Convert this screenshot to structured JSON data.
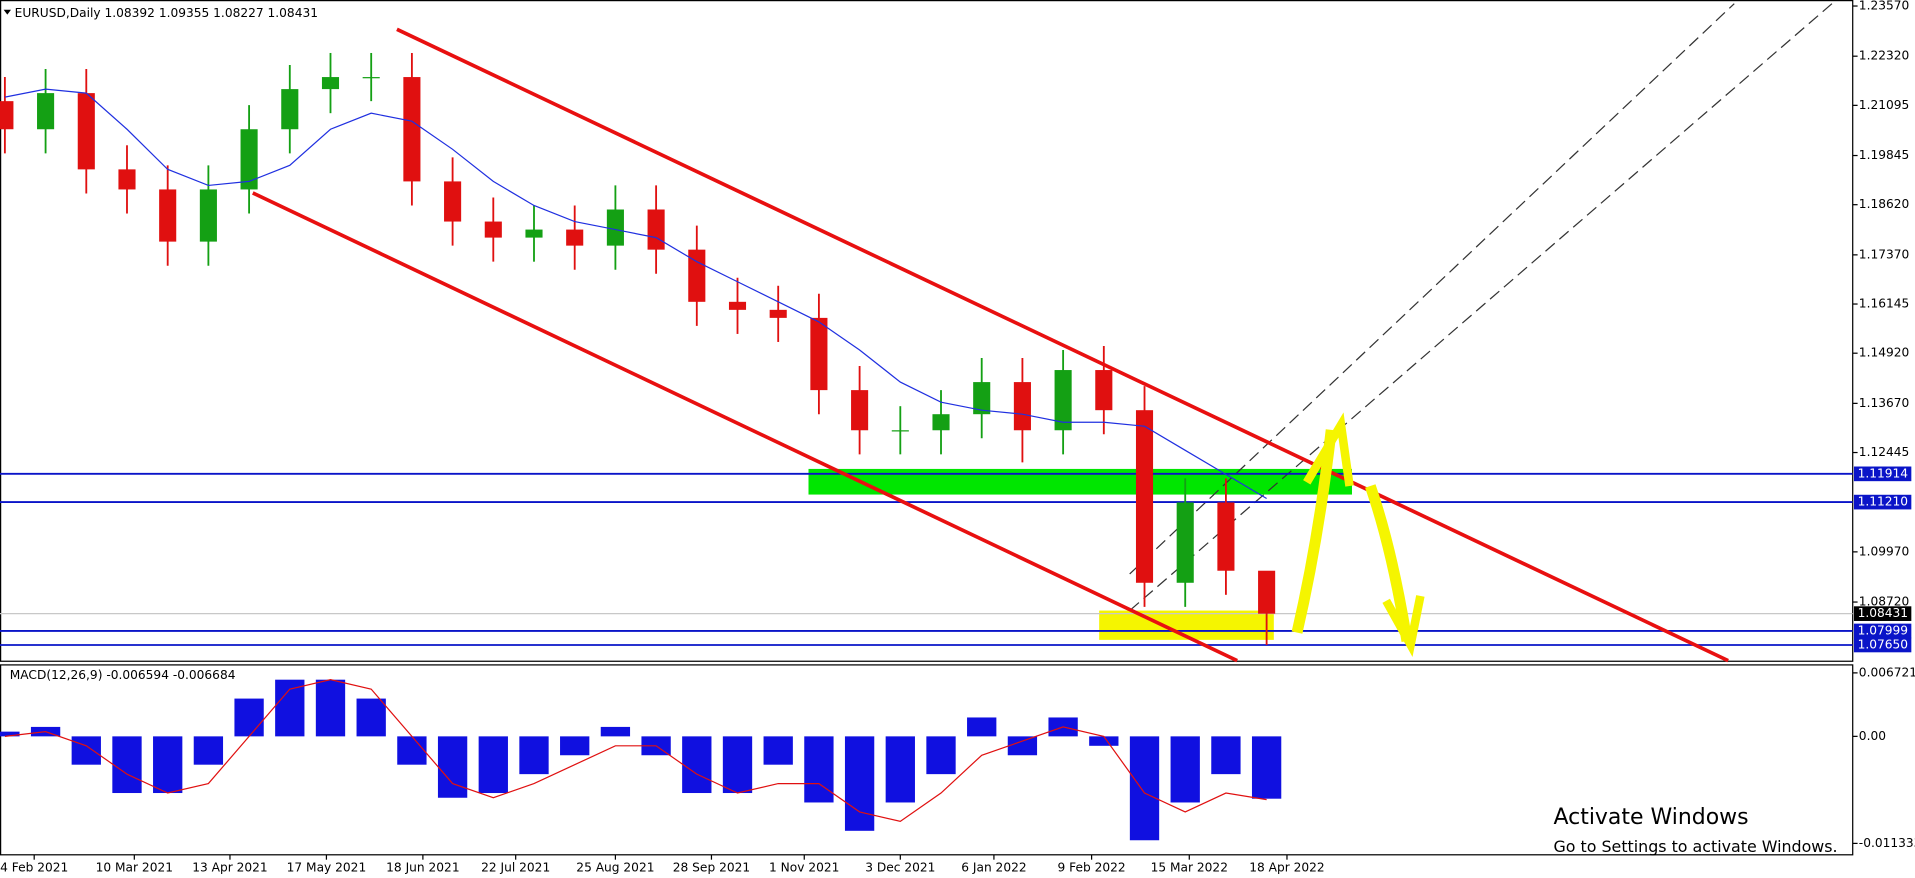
{
  "chart_data": [
    {
      "type": "candlestick",
      "title": "EURUSD,Daily 1.08392 1.09355 1.08227 1.08431",
      "up_color": "#14a014",
      "down_color": "#e01010",
      "open": [
        1.212,
        1.205,
        1.214,
        1.195,
        1.19,
        1.177,
        1.19,
        1.205,
        1.215,
        1.218,
        1.218,
        1.192,
        1.182,
        1.178,
        1.18,
        1.176,
        1.185,
        1.175,
        1.162,
        1.16,
        1.158,
        1.14,
        1.13,
        1.13,
        1.134,
        1.142,
        1.13,
        1.145,
        1.135,
        1.092,
        1.112,
        1.095
      ],
      "high": [
        1.218,
        1.22,
        1.22,
        1.201,
        1.196,
        1.196,
        1.211,
        1.221,
        1.224,
        1.224,
        1.224,
        1.198,
        1.188,
        1.186,
        1.186,
        1.191,
        1.191,
        1.181,
        1.168,
        1.166,
        1.164,
        1.146,
        1.136,
        1.14,
        1.148,
        1.148,
        1.15,
        1.151,
        1.141,
        1.118,
        1.118,
        1.0936
      ],
      "low": [
        1.199,
        1.199,
        1.189,
        1.184,
        1.171,
        1.171,
        1.184,
        1.199,
        1.209,
        1.212,
        1.186,
        1.176,
        1.172,
        1.172,
        1.17,
        1.17,
        1.169,
        1.156,
        1.154,
        1.152,
        1.134,
        1.124,
        1.124,
        1.124,
        1.128,
        1.122,
        1.124,
        1.129,
        1.086,
        1.086,
        1.089,
        1.0765
      ],
      "close": [
        1.205,
        1.214,
        1.195,
        1.19,
        1.177,
        1.19,
        1.205,
        1.215,
        1.218,
        1.218,
        1.192,
        1.182,
        1.178,
        1.18,
        1.176,
        1.185,
        1.175,
        1.162,
        1.16,
        1.158,
        1.14,
        1.13,
        1.13,
        1.134,
        1.142,
        1.13,
        1.145,
        1.135,
        1.092,
        1.112,
        1.095,
        1.0843
      ],
      "ma": {
        "color": "#2030e0",
        "values": [
          1.213,
          1.215,
          1.214,
          1.205,
          1.195,
          1.191,
          1.192,
          1.196,
          1.205,
          1.209,
          1.207,
          1.2,
          1.192,
          1.186,
          1.182,
          1.18,
          1.178,
          1.172,
          1.167,
          1.162,
          1.157,
          1.15,
          1.142,
          1.137,
          1.135,
          1.134,
          1.132,
          1.132,
          1.131,
          1.125,
          1.119,
          1.113
        ]
      },
      "xlim": [
        -0.12,
        45.4
      ],
      "xticks": [
        {
          "value": 0.72,
          "label": "4 Feb 2021"
        },
        {
          "value": 3.18,
          "label": "10 Mar 2021"
        },
        {
          "value": 5.53,
          "label": "13 Apr 2021"
        },
        {
          "value": 7.9,
          "label": "17 May 2021"
        },
        {
          "value": 10.27,
          "label": "18 Jun 2021"
        },
        {
          "value": 12.55,
          "label": "22 Jul 2021"
        },
        {
          "value": 15.0,
          "label": "25 Aug 2021"
        },
        {
          "value": 17.36,
          "label": "28 Sep 2021"
        },
        {
          "value": 19.64,
          "label": "1 Nov 2021"
        },
        {
          "value": 22.0,
          "label": "3 Dec 2021"
        },
        {
          "value": 24.3,
          "label": "6 Jan 2022"
        },
        {
          "value": 26.7,
          "label": "9 Feb 2022"
        },
        {
          "value": 29.1,
          "label": "15 Mar 2022"
        },
        {
          "value": 31.5,
          "label": "18 Apr 2022"
        }
      ],
      "ylim": [
        1.0726,
        1.2372
      ],
      "yticks": [
        {
          "value": 1.2357,
          "label": "1.23570"
        },
        {
          "value": 1.2232,
          "label": "1.22320"
        },
        1.21095,
        1.19845,
        {
          "value": 1.1862,
          "label": "1.18620"
        },
        {
          "value": 1.1737,
          "label": "1.17370"
        },
        1.16145,
        {
          "value": 1.1492,
          "label": "1.14920"
        },
        {
          "value": 1.1367,
          "label": "1.13670"
        },
        1.12445,
        {
          "value": 1.0997,
          "label": "1.09970"
        },
        {
          "value": 1.0872,
          "label": "1.08720"
        }
      ],
      "levels": [
        1.11914,
        {
          "value": 1.1121,
          "label": "1.11210"
        },
        1.07999,
        {
          "value": 1.0765,
          "label": "1.07650"
        }
      ],
      "level_color": "#0a14c8",
      "current_price": 1.08431
    },
    {
      "type": "macd",
      "title": "MACD(12,26,9) -0.006594 -0.006684",
      "xlim": [
        -0.12,
        45.4
      ],
      "ylim": [
        -0.01254,
        0.0075
      ],
      "yticks": [
        0.006721,
        {
          "value": 0,
          "label": "0.00"
        },
        -0.011333
      ],
      "histogram": {
        "color": "#1010e0",
        "values": [
          0.0005,
          0.001,
          -0.003,
          -0.006,
          -0.006,
          -0.003,
          0.004,
          0.006,
          0.006,
          0.004,
          -0.003,
          -0.0065,
          -0.006,
          -0.004,
          -0.002,
          0.001,
          -0.002,
          -0.006,
          -0.006,
          -0.003,
          -0.007,
          -0.01,
          -0.007,
          -0.004,
          0.002,
          -0.002,
          0.002,
          -0.001,
          -0.011,
          -0.007,
          -0.004,
          -0.0066
        ]
      },
      "signal": {
        "color": "#e01010",
        "values": [
          0,
          0.0005,
          -0.001,
          -0.004,
          -0.006,
          -0.005,
          0,
          0.005,
          0.006,
          0.005,
          0,
          -0.005,
          -0.0065,
          -0.005,
          -0.003,
          -0.001,
          -0.001,
          -0.004,
          -0.006,
          -0.005,
          -0.005,
          -0.008,
          -0.009,
          -0.006,
          -0.002,
          -0.0005,
          0.001,
          0,
          -0.006,
          -0.008,
          -0.006,
          -0.0067
        ]
      }
    }
  ],
  "watermark": {
    "title": "Activate Windows",
    "subtitle": "Go to Settings to activate Windows."
  }
}
